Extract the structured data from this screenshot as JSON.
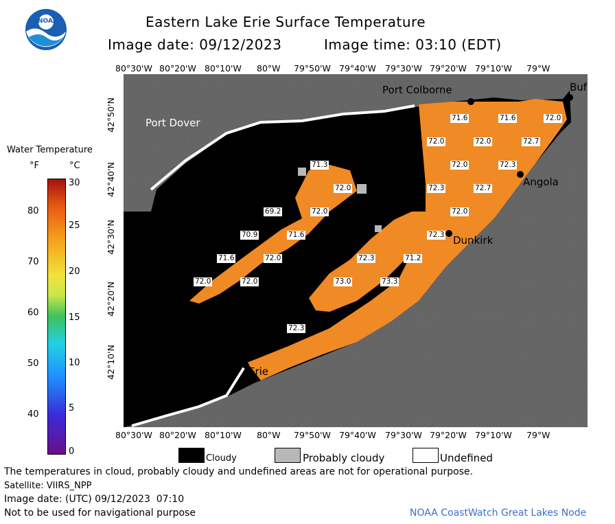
{
  "header": {
    "title": "Eastern Lake Erie Surface Temperature",
    "image_date": "Image date: 09/12/2023",
    "image_time": "Image time: 03:10 (EDT)"
  },
  "logo": {
    "text": "NOAA"
  },
  "colorbar": {
    "title": "Water Temperature",
    "unit_f": "°F",
    "unit_c": "°C",
    "f_ticks": [
      "80",
      "70",
      "60",
      "50",
      "40"
    ],
    "c_ticks": [
      "30",
      "25",
      "20",
      "15",
      "10",
      "5",
      "0"
    ]
  },
  "map": {
    "lon_ticks": [
      "80°30'W",
      "80°20'W",
      "80°10'W",
      "80°W",
      "79°50'W",
      "79°40'W",
      "79°30'W",
      "79°20'W",
      "79°10'W",
      "79°W"
    ],
    "lat_ticks": [
      "42°50'N",
      "42°40'N",
      "42°30'N",
      "42°20'N",
      "42°10'N"
    ],
    "places": {
      "port_colborne": "Port Colborne",
      "buffalo": "Buf",
      "port_dover": "Port Dover",
      "angola": "Angola",
      "dunkirk": "Dunkirk",
      "erie": "Erie"
    },
    "temperatures": [
      "71.6",
      "71.6",
      "72.0",
      "72.0",
      "72.0",
      "72.7",
      "71.3",
      "72.0",
      "72.3",
      "72.3",
      "72.7",
      "72.0",
      "72.0",
      "69.2",
      "72.0",
      "71.6",
      "72.3",
      "70.9",
      "71.6",
      "72.0",
      "72.0",
      "72.3",
      "71.2",
      "73.0",
      "73.3",
      "72.3",
      "72.0"
    ],
    "colors": {
      "land": "#666666",
      "cloud": "#000000",
      "water": "#f08a24",
      "probably_cloudy": "#b8b8b8"
    }
  },
  "legend": {
    "cloudy": "Cloudy",
    "probably_cloudy": "Probably cloudy",
    "undefined": "Undefined"
  },
  "footer": {
    "note": "The temperatures in cloud, probably cloudy and undefined areas are not for operational purpose.",
    "satellite": "Satellite: VIIRS_NPP",
    "utc_date": "Image date: (UTC) 09/12/2023  07:10",
    "nav_warning": "Not to be used for navigational purpose",
    "credit": "NOAA CoastWatch Great Lakes Node"
  }
}
